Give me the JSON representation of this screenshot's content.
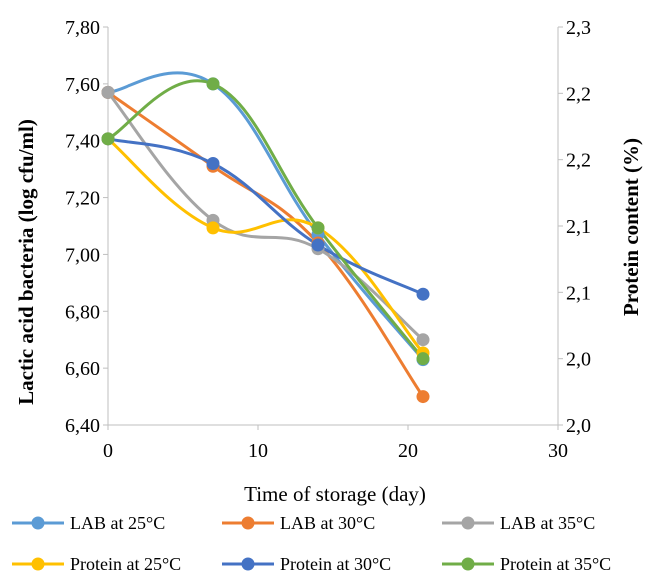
{
  "chart_data": {
    "type": "line",
    "xlabel": "Time of storage (day)",
    "ylabel": "Lactic acid bacteria (log cfu/ml)",
    "y2label": "Protein  content (%)",
    "xlim": [
      0,
      30
    ],
    "x_ticks": [
      "0",
      "10",
      "20",
      "30"
    ],
    "ylim": [
      6.4,
      7.8
    ],
    "y_ticks": [
      "6,40",
      "6,60",
      "6,80",
      "7,00",
      "7,20",
      "7,40",
      "7,60",
      "7,80"
    ],
    "y2lim": [
      2.0,
      2.3
    ],
    "y2_ticks": [
      "2,0",
      "2,0",
      "2,1",
      "2,1",
      "2,2",
      "2,2",
      "2,3"
    ],
    "grid": false,
    "legend_position": "bottom",
    "series": [
      {
        "name": "LAB at 25°C",
        "axis": "left",
        "color": "#5B9BD5",
        "x": [
          0,
          7,
          14,
          21
        ],
        "y": [
          7.57,
          7.6,
          7.07,
          6.63
        ]
      },
      {
        "name": "LAB at 30°C",
        "axis": "left",
        "color": "#ED7D31",
        "x": [
          0,
          7,
          14,
          21
        ],
        "y": [
          7.57,
          7.31,
          7.04,
          6.5
        ]
      },
      {
        "name": "LAB at 35°C",
        "axis": "left",
        "color": "#A5A5A5",
        "x": [
          0,
          7,
          14,
          21
        ],
        "y": [
          7.57,
          7.12,
          7.02,
          6.7
        ]
      },
      {
        "name": "Protein at 25°C",
        "axis": "right",
        "color": "#FFC000",
        "x": [
          0,
          7,
          14,
          21
        ],
        "y": [
          2.2157,
          2.1486,
          2.1486,
          2.0543
        ]
      },
      {
        "name": "Protein at 30°C",
        "axis": "right",
        "color": "#4472C4",
        "x": [
          0,
          7,
          14,
          21
        ],
        "y": [
          2.2157,
          2.1971,
          2.1357,
          2.0986
        ]
      },
      {
        "name": "Protein at 35°C",
        "axis": "right",
        "color": "#70AD47",
        "x": [
          0,
          7,
          14,
          21
        ],
        "y": [
          2.2157,
          2.2571,
          2.1486,
          2.05
        ]
      }
    ]
  }
}
